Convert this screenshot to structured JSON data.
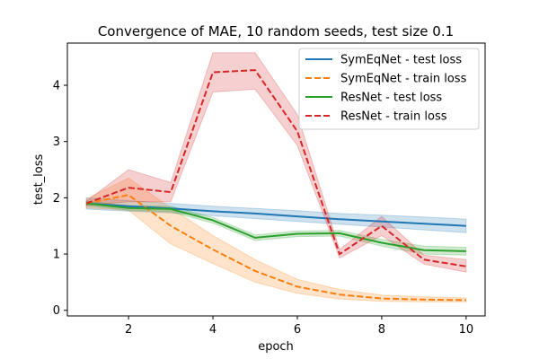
{
  "chart_data": {
    "type": "line",
    "title": "Convergence of MAE, 10 random seeds, test size 0.1",
    "xlabel": "epoch",
    "ylabel": "test_loss",
    "xlim": [
      0.55,
      10.45
    ],
    "ylim": [
      -0.1,
      4.75
    ],
    "xticks": [
      2,
      4,
      6,
      8,
      10
    ],
    "yticks": [
      0,
      1,
      2,
      3,
      4
    ],
    "grid": false,
    "legend_position": "top-right",
    "x": [
      1,
      2,
      3,
      4,
      5,
      6,
      7,
      8,
      9,
      10
    ],
    "series": [
      {
        "name": "SymEqNet - test loss",
        "color": "#1f77b4",
        "dash": "solid",
        "values": [
          1.9,
          1.85,
          1.81,
          1.76,
          1.72,
          1.67,
          1.62,
          1.58,
          1.54,
          1.5
        ],
        "lower": [
          1.8,
          1.76,
          1.73,
          1.68,
          1.63,
          1.58,
          1.53,
          1.48,
          1.43,
          1.38
        ],
        "upper": [
          2.0,
          1.95,
          1.9,
          1.85,
          1.81,
          1.77,
          1.72,
          1.69,
          1.66,
          1.62
        ]
      },
      {
        "name": "SymEqNet - train loss",
        "color": "#ff7f0e",
        "dash": "dashed",
        "values": [
          1.9,
          2.05,
          1.5,
          1.08,
          0.7,
          0.42,
          0.28,
          0.21,
          0.19,
          0.18
        ],
        "lower": [
          1.82,
          1.78,
          1.18,
          0.83,
          0.5,
          0.3,
          0.2,
          0.16,
          0.15,
          0.15
        ],
        "upper": [
          1.98,
          2.35,
          1.82,
          1.33,
          0.9,
          0.55,
          0.37,
          0.27,
          0.24,
          0.22
        ]
      },
      {
        "name": "ResNet - test loss",
        "color": "#2ca02c",
        "dash": "solid",
        "values": [
          1.9,
          1.82,
          1.8,
          1.6,
          1.29,
          1.36,
          1.37,
          1.2,
          1.07,
          1.05
        ],
        "lower": [
          1.86,
          1.78,
          1.75,
          1.55,
          1.24,
          1.31,
          1.32,
          1.14,
          1.0,
          0.98
        ],
        "upper": [
          1.94,
          1.86,
          1.85,
          1.65,
          1.34,
          1.41,
          1.42,
          1.26,
          1.14,
          1.12
        ]
      },
      {
        "name": "ResNet - train loss",
        "color": "#d62728",
        "dash": "dashed",
        "values": [
          1.9,
          2.18,
          2.1,
          4.23,
          4.27,
          3.18,
          1.0,
          1.5,
          0.9,
          0.78
        ],
        "lower": [
          1.86,
          1.93,
          1.93,
          3.88,
          3.93,
          2.93,
          0.93,
          1.33,
          0.82,
          0.68
        ],
        "upper": [
          1.94,
          2.5,
          2.27,
          4.58,
          4.58,
          3.48,
          1.08,
          1.67,
          0.98,
          0.9
        ]
      }
    ]
  }
}
